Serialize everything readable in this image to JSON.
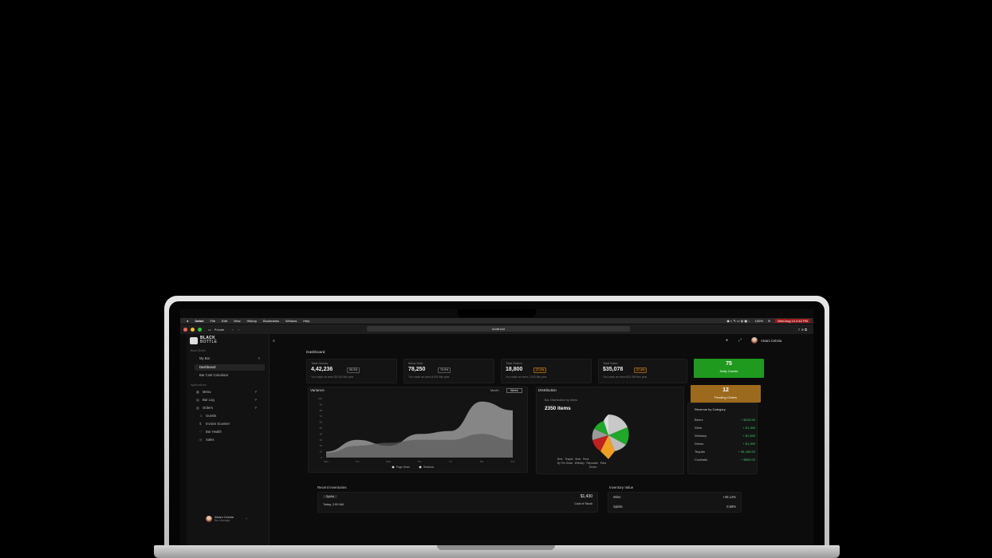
{
  "menubar": {
    "items": [
      "Safari",
      "File",
      "Edit",
      "View",
      "History",
      "Bookmarks",
      "Window",
      "Help"
    ],
    "battery": "100%",
    "clock": "Wed Aug 14  2:42 PM"
  },
  "browser": {
    "mode": "Private",
    "url": "localhost"
  },
  "brand": {
    "line1": "BLACK",
    "line2": "BOTTLE"
  },
  "sidebar": {
    "section_label": "Black Bottle",
    "group": "My Bar",
    "items": [
      "Dashboard",
      "Bar Cost Calculator"
    ],
    "apps_label": "Applications",
    "apps": [
      "Menu",
      "Bar Log",
      "Orders",
      "Guests",
      "Invoice Scanner",
      "Bar Health",
      "Sales"
    ]
  },
  "user": {
    "name": "Alvaro Celoria",
    "role": "Bar Manager"
  },
  "page": {
    "title": "Dashboard"
  },
  "stats": [
    {
      "title": "Total Guests",
      "value": "4,42,236",
      "badge": "59.3%",
      "sub": "You made an extra 35,000 this year",
      "warn": false
    },
    {
      "title": "Items Sold",
      "value": "78,250",
      "badge": "70.5%",
      "sub": "You made an extra 8,900 this year",
      "warn": false
    },
    {
      "title": "Total Orders",
      "value": "18,800",
      "badge": "27.4%",
      "sub": "You made an extra 1,943 this year",
      "warn": true
    },
    {
      "title": "Total Sales",
      "value": "$35,078",
      "badge": "27.4%",
      "sub": "You made an extra $20,395 this year",
      "warn": true
    }
  ],
  "tiles": [
    {
      "value": "75",
      "label": "Daily Guests",
      "color": "#1f9a1f"
    },
    {
      "value": "12",
      "label": "Pending Orders",
      "color": "#9c6a1c"
    }
  ],
  "variance": {
    "title": "Variance",
    "toggle": [
      "Month",
      "Week"
    ],
    "active": "Week",
    "legend": [
      "Page Views",
      "Sessions"
    ]
  },
  "distribution": {
    "title": "Distribution",
    "subtitle": "Bar Distribution by items",
    "total": "2350 items",
    "legend": [
      "Beer",
      "Tequila",
      "Wine",
      "Rosé",
      "By The Glass",
      "Whiskey",
      "Reposado",
      "Extra",
      "Drinks"
    ]
  },
  "revenue": {
    "title": "Revenue by Category",
    "rows": [
      {
        "name": "Beers",
        "value": "+ $245.65"
      },
      {
        "name": "Wine",
        "value": "+ $1,369"
      },
      {
        "name": "Whiskey",
        "value": "+ $1,569"
      },
      {
        "name": "Drinks",
        "value": "+ $1,369"
      },
      {
        "name": "Tequila",
        "value": "+ $1,456.63"
      },
      {
        "name": "Cocktails",
        "value": "+ $890.00"
      }
    ]
  },
  "recent_inventories": {
    "title": "Recent Inventories",
    "tag": "Spirits",
    "amount": "$1,430",
    "date": "Today, 2:00 AM",
    "caption": "Cost of Stock"
  },
  "inventory_value": {
    "title": "Inventory Value",
    "rows": [
      {
        "name": "Wine",
        "value": "+45.14%"
      },
      {
        "name": "Spirits",
        "value": "0.58%"
      }
    ]
  },
  "chart_data": {
    "type": "area",
    "title": "Variance",
    "x": [
      "Mon",
      "Tue",
      "Wed",
      "Thu",
      "Fri",
      "Sat",
      "Sun"
    ],
    "yticks": [
      "100",
      "90",
      "80",
      "70",
      "60",
      "50",
      "40",
      "30",
      "20",
      "10",
      "0"
    ],
    "ylim": [
      0,
      100
    ],
    "series": [
      {
        "name": "Page Views",
        "values": [
          10,
          30,
          20,
          40,
          45,
          95,
          80
        ]
      },
      {
        "name": "Sessions",
        "values": [
          8,
          20,
          25,
          30,
          30,
          40,
          30
        ]
      }
    ]
  }
}
